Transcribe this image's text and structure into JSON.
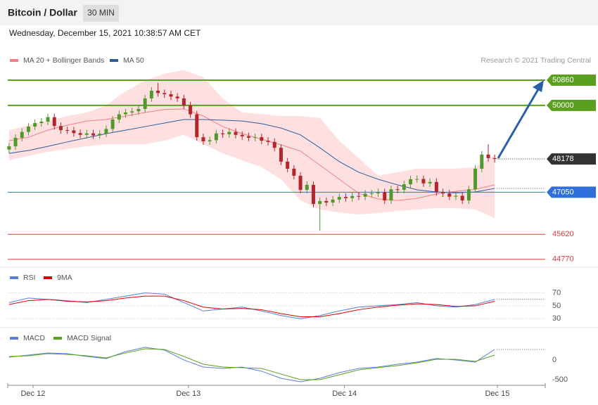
{
  "header": {
    "title": "Bitcoin / Dollar",
    "interval": "30 MIN",
    "timestamp": "Wednesday, December 15, 2021 10:38:57 AM CET"
  },
  "chart_data": [
    {
      "type": "candlestick",
      "credit": "Research © 2021 Trading Central",
      "xlim": [
        -0.2,
        82.8
      ],
      "ylim": [
        44550,
        51910
      ],
      "up_color": "#4f9a2a",
      "down_color": "#b3262b",
      "band_color": "#ffe0e0",
      "open": [
        48500,
        48610,
        48900,
        49100,
        49280,
        49400,
        49450,
        49600,
        49300,
        49160,
        49150,
        49060,
        49000,
        49050,
        48980,
        49040,
        49200,
        49520,
        49700,
        49760,
        49800,
        49880,
        50240,
        50500,
        50420,
        50380,
        50300,
        50240,
        50000,
        49700,
        48920,
        48780,
        48820,
        49050,
        49020,
        49100,
        49000,
        48950,
        48900,
        48920,
        48800,
        48760,
        48560,
        48090,
        47850,
        47610,
        47130,
        47300,
        46650,
        46750,
        46700,
        46800,
        46890,
        46850,
        46920,
        46900,
        47000,
        47010,
        47050,
        46770,
        47150,
        47130,
        47320,
        47490,
        47500,
        47350,
        47400,
        47050,
        47010,
        46900,
        46930,
        46770,
        47150,
        47850,
        48330,
        48210
      ],
      "high": [
        48730,
        49020,
        49220,
        49400,
        49520,
        49570,
        49720,
        49720,
        49420,
        49280,
        49270,
        49180,
        49170,
        49170,
        49160,
        49320,
        49640,
        49820,
        49880,
        49920,
        50000,
        50360,
        50620,
        50770,
        50540,
        50500,
        50420,
        50360,
        50120,
        49820,
        49040,
        48940,
        49170,
        49170,
        49220,
        49220,
        49120,
        49070,
        49040,
        49040,
        48920,
        48880,
        48680,
        48210,
        47970,
        47730,
        47420,
        47420,
        46870,
        46870,
        46920,
        47010,
        47010,
        47040,
        47040,
        47120,
        47130,
        47170,
        47170,
        47270,
        47270,
        47440,
        47610,
        47620,
        47620,
        47520,
        47520,
        47170,
        47130,
        47050,
        47050,
        47270,
        47970,
        48450,
        48680,
        48330
      ],
      "low": [
        48380,
        48490,
        48780,
        48980,
        49160,
        49280,
        49330,
        49180,
        49040,
        49030,
        48940,
        48880,
        48880,
        48860,
        48860,
        48920,
        49080,
        49400,
        49580,
        49640,
        49680,
        49760,
        50120,
        50300,
        50260,
        50180,
        50120,
        49880,
        49580,
        48800,
        48660,
        48660,
        48700,
        48900,
        48900,
        48880,
        48830,
        48780,
        48780,
        48680,
        48640,
        48440,
        47970,
        47730,
        47490,
        47010,
        47010,
        46530,
        45740,
        46580,
        46580,
        46680,
        46730,
        46730,
        46780,
        46780,
        46880,
        46890,
        46650,
        46650,
        47010,
        47010,
        47200,
        47370,
        47230,
        47230,
        46930,
        46890,
        46780,
        46780,
        46650,
        46650,
        47030,
        47730,
        48090,
        48060
      ],
      "close": [
        48610,
        48900,
        49100,
        49280,
        49400,
        49450,
        49600,
        49300,
        49160,
        49150,
        49060,
        49000,
        49050,
        48980,
        49040,
        49200,
        49520,
        49700,
        49760,
        49800,
        49880,
        50240,
        50500,
        50420,
        50380,
        50300,
        50240,
        50000,
        49700,
        48920,
        48780,
        48820,
        49050,
        49020,
        49100,
        49000,
        48950,
        48900,
        48920,
        48800,
        48760,
        48560,
        48090,
        47850,
        47610,
        47130,
        47300,
        46650,
        46750,
        46700,
        46800,
        46890,
        46850,
        46920,
        46900,
        47000,
        47010,
        47050,
        46770,
        47150,
        47130,
        47320,
        47490,
        47500,
        47350,
        47400,
        47050,
        47010,
        46900,
        46930,
        46770,
        47150,
        47850,
        48330,
        48210,
        48178
      ],
      "series_x": [
        0,
        3,
        6,
        9,
        12,
        15,
        18,
        21,
        24,
        27,
        30,
        33,
        36,
        39,
        42,
        45,
        48,
        51,
        54,
        57,
        60,
        63,
        66,
        69,
        72,
        75
      ],
      "series": [
        {
          "name": "MA 20 + Bollinger Bands",
          "color": "#f08080",
          "values": [
            48800,
            48920,
            49160,
            49330,
            49470,
            49520,
            49640,
            49760,
            49860,
            49880,
            49640,
            49280,
            49040,
            48850,
            48660,
            48450,
            47970,
            47490,
            47010,
            46820,
            46770,
            46840,
            46990,
            47080,
            47150,
            47300
          ],
          "upper": [
            49160,
            49330,
            49470,
            49640,
            49760,
            50000,
            50480,
            50840,
            51080,
            51200,
            50960,
            50240,
            49760,
            49710,
            49640,
            49640,
            49570,
            48800,
            48210,
            47610,
            47730,
            47850,
            47850,
            47850,
            47900,
            48330
          ],
          "lower": [
            48130,
            48280,
            48420,
            48520,
            48610,
            48680,
            48680,
            48680,
            48800,
            49000,
            48680,
            48370,
            48130,
            47900,
            47490,
            46770,
            46460,
            46360,
            46290,
            46340,
            46410,
            46460,
            46510,
            46510,
            46460,
            46170
          ]
        },
        {
          "name": "MA 50",
          "color": "#2d5b9a",
          "last_marker": true,
          "values": [
            48370,
            48470,
            48610,
            48760,
            48900,
            49040,
            49160,
            49280,
            49400,
            49520,
            49520,
            49500,
            49470,
            49380,
            49230,
            49000,
            48560,
            48090,
            47730,
            47490,
            47300,
            47130,
            47060,
            47030,
            47060,
            47180
          ]
        }
      ],
      "levels": [
        {
          "value": 50860,
          "color": "#5aa01e",
          "label_style": "box"
        },
        {
          "value": 50000,
          "color": "#5aa01e",
          "label_style": "box"
        },
        {
          "value": 47050,
          "color": "#2f6fdc",
          "label_style": "box"
        },
        {
          "value": 45620,
          "color": "#e5393b",
          "label_style": "text"
        },
        {
          "value": 44770,
          "color": "#e5393b",
          "label_style": "text"
        }
      ]
    },
    {
      "type": "line",
      "xlim": [
        -0.2,
        82.8
      ],
      "ylim": [
        20,
        88
      ],
      "yticks": [
        70,
        50,
        30
      ],
      "grid": true,
      "series_x": [
        0,
        3,
        6,
        9,
        12,
        15,
        18,
        21,
        24,
        27,
        30,
        33,
        36,
        39,
        42,
        45,
        48,
        51,
        54,
        57,
        60,
        63,
        66,
        69,
        72,
        75
      ],
      "series": [
        {
          "name": "RSI",
          "color": "#5b7fd6",
          "last_marker": true,
          "values": [
            55,
            62,
            60,
            58,
            55,
            60,
            65,
            70,
            68,
            55,
            42,
            45,
            48,
            42,
            35,
            30,
            35,
            42,
            48,
            50,
            52,
            55,
            50,
            48,
            52,
            60
          ]
        },
        {
          "name": "9MA",
          "color": "#e00000",
          "values": [
            52,
            58,
            60,
            57,
            56,
            58,
            62,
            65,
            65,
            58,
            48,
            45,
            46,
            44,
            38,
            33,
            33,
            38,
            44,
            48,
            51,
            53,
            52,
            49,
            50,
            57
          ]
        }
      ]
    },
    {
      "type": "line",
      "xlim": [
        -0.2,
        82.8
      ],
      "ylim": [
        -640,
        390
      ],
      "yticks": [
        0,
        -500
      ],
      "grid": false,
      "xticks": [
        {
          "value": 3.7,
          "label": "Dec 12"
        },
        {
          "value": 27.7,
          "label": "Dec 13"
        },
        {
          "value": 51.8,
          "label": "Dec 14"
        },
        {
          "value": 75.4,
          "label": "Dec 15"
        }
      ],
      "series_x": [
        0,
        3,
        6,
        9,
        12,
        15,
        18,
        21,
        24,
        27,
        30,
        33,
        36,
        39,
        42,
        45,
        48,
        51,
        54,
        57,
        60,
        63,
        66,
        69,
        72,
        75
      ],
      "series": [
        {
          "name": "MACD",
          "color": "#5b7fd6",
          "last_marker": true,
          "values": [
            71,
            124,
            178,
            160,
            89,
            36,
            213,
            320,
            249,
            0,
            -178,
            -213,
            -178,
            -284,
            -462,
            -551,
            -462,
            -320,
            -213,
            -178,
            -107,
            -53,
            36,
            0,
            -53,
            266
          ]
        },
        {
          "name": "MACD Signal",
          "color": "#5aa01e",
          "values": [
            89,
            107,
            160,
            142,
            107,
            53,
            178,
            284,
            266,
            89,
            -107,
            -178,
            -195,
            -213,
            -355,
            -497,
            -497,
            -373,
            -249,
            -195,
            -142,
            -71,
            18,
            18,
            -36,
            124
          ]
        }
      ]
    }
  ]
}
